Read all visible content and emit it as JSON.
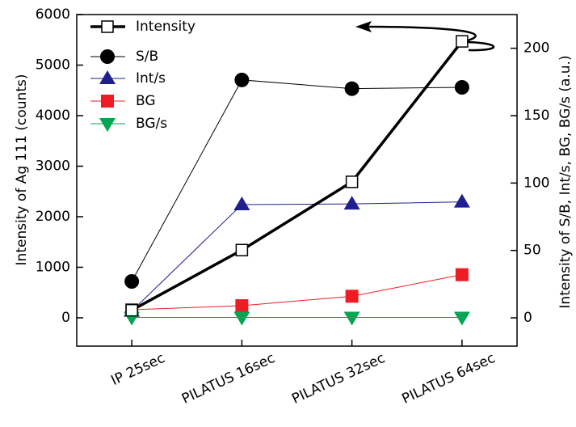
{
  "chart_data": {
    "type": "line",
    "categories": [
      "IP 25sec",
      "PILATUS 16sec",
      "PILATUS 32sec",
      "PILATUS 64sec"
    ],
    "y_label": "Intensity of Ag 111 (counts)",
    "y2_label": "Intensity of S/B, Int/s, BG, BG/s (a.u.)",
    "ylim": [
      -560,
      6000
    ],
    "yticks": [
      0,
      1000,
      2000,
      3000,
      4000,
      5000,
      6000
    ],
    "y2lim": [
      -21,
      225
    ],
    "y2ticks": [
      0,
      50,
      100,
      150,
      200
    ],
    "legend": "upper left",
    "series": [
      {
        "name": "S/B",
        "color": "#000000",
        "marker": "circle",
        "line_width": 1,
        "axis": "y2",
        "values": [
          27,
          176.5,
          170,
          171
        ]
      },
      {
        "name": "Int/s",
        "color": "#1f1f8f",
        "marker": "triangle-up",
        "line_width": 1,
        "axis": "y2",
        "values": [
          5,
          84,
          84.5,
          86
        ]
      },
      {
        "name": "BG",
        "color": "#ee1c24",
        "marker": "square",
        "line_width": 1,
        "axis": "y2",
        "values": [
          6,
          9,
          16,
          32
        ]
      },
      {
        "name": "BG/s",
        "color": "#00a651",
        "marker": "triangle-down",
        "line_width": 1,
        "axis": "y2",
        "values": [
          0.3,
          0.3,
          0.3,
          0.3
        ]
      },
      {
        "name": "Intensity",
        "color": "#000000",
        "marker": "square-open",
        "line_width": 3.5,
        "axis": "y",
        "values": [
          150,
          1340,
          2690,
          5470
        ]
      }
    ]
  }
}
